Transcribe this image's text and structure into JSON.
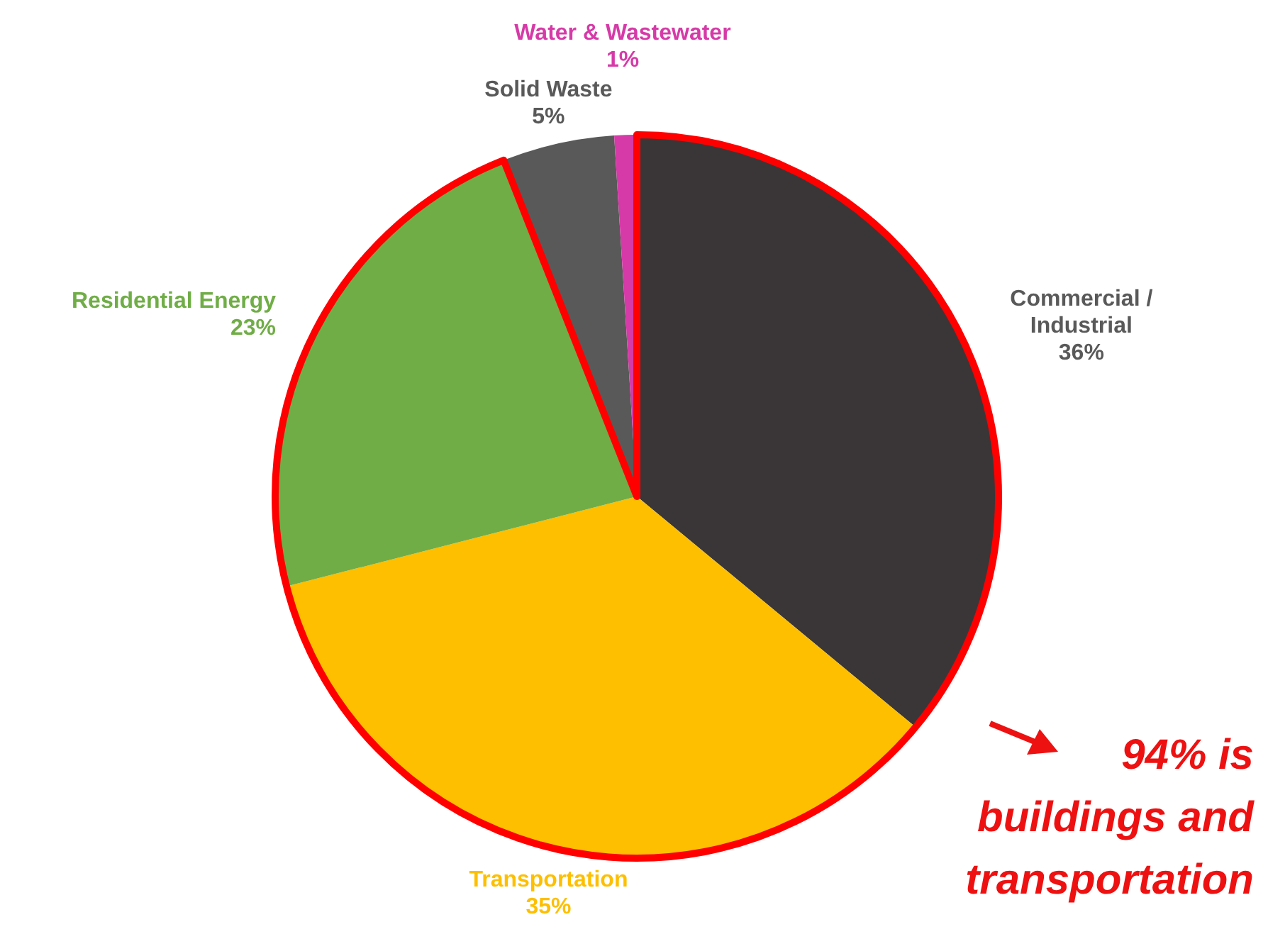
{
  "chart_data": {
    "type": "pie",
    "categories": [
      "Commercial / Industrial",
      "Transportation",
      "Residential Energy",
      "Solid Waste",
      "Water & Wastewater"
    ],
    "values": [
      36,
      35,
      23,
      5,
      1
    ],
    "value_labels": [
      "36%",
      "35%",
      "23%",
      "5%",
      "1%"
    ],
    "colors": [
      "#3a3637",
      "#fdbf00",
      "#70ad47",
      "#595959",
      "#d63aa8"
    ],
    "annotations": [
      "94% is buildings and transportation"
    ]
  }
}
